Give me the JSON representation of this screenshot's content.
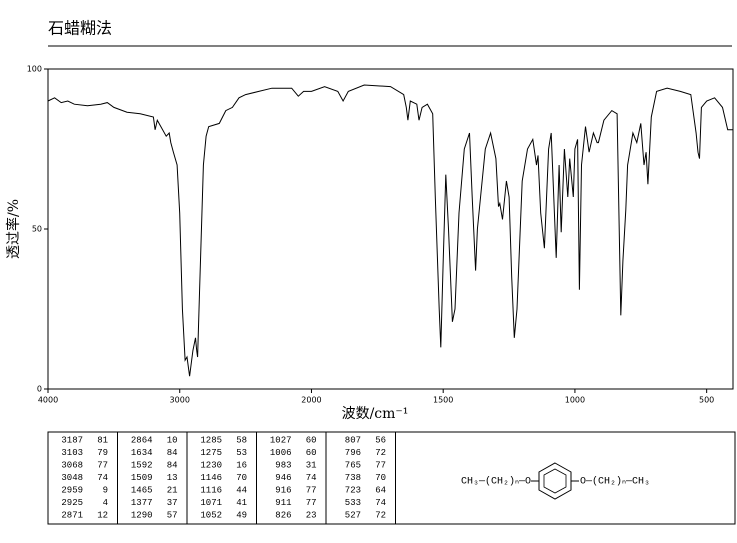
{
  "chart_data": {
    "type": "line",
    "title": "石蜡糊法",
    "xlabel": "波数/cm⁻¹",
    "ylabel": "透过率/%",
    "color": "#000000",
    "xlim": [
      4000,
      400
    ],
    "x_scale_break": 2000,
    "x_scale_ratio": 2,
    "xticks": [
      4000,
      3000,
      2000,
      1500,
      1000,
      500
    ],
    "ylim": [
      0,
      100
    ],
    "yticks": [
      0,
      50,
      100
    ],
    "grid": false,
    "x": [
      4000,
      3950,
      3900,
      3850,
      3800,
      3700,
      3600,
      3550,
      3500,
      3400,
      3300,
      3200,
      3187,
      3170,
      3103,
      3080,
      3068,
      3048,
      3020,
      3000,
      2980,
      2959,
      2945,
      2925,
      2900,
      2880,
      2871,
      2864,
      2850,
      2820,
      2800,
      2780,
      2700,
      2650,
      2600,
      2550,
      2500,
      2400,
      2300,
      2200,
      2150,
      2100,
      2060,
      2000,
      1950,
      1900,
      1880,
      1860,
      1800,
      1700,
      1650,
      1640,
      1634,
      1625,
      1600,
      1592,
      1580,
      1560,
      1540,
      1530,
      1515,
      1509,
      1500,
      1490,
      1480,
      1465,
      1455,
      1440,
      1420,
      1400,
      1390,
      1377,
      1370,
      1340,
      1320,
      1300,
      1290,
      1285,
      1275,
      1260,
      1250,
      1240,
      1230,
      1220,
      1200,
      1180,
      1160,
      1146,
      1140,
      1130,
      1116,
      1100,
      1090,
      1071,
      1060,
      1052,
      1040,
      1027,
      1020,
      1006,
      1000,
      990,
      983,
      975,
      960,
      946,
      930,
      916,
      911,
      890,
      860,
      840,
      826,
      818,
      807,
      800,
      796,
      780,
      765,
      750,
      738,
      730,
      723,
      710,
      690,
      650,
      600,
      560,
      540,
      533,
      527,
      520,
      500,
      470,
      440,
      420,
      400
    ],
    "values": [
      90,
      91,
      89.5,
      90,
      89,
      88.5,
      89,
      89.5,
      88,
      86.5,
      86,
      85,
      81,
      84,
      79,
      80,
      77,
      74,
      70,
      55,
      25,
      9,
      10,
      4,
      12,
      16,
      12,
      10,
      30,
      70,
      79,
      82,
      83,
      87,
      88,
      91,
      92,
      93,
      94,
      94,
      94,
      91.5,
      93,
      93,
      94.5,
      93,
      90,
      93,
      95,
      94.5,
      92,
      88,
      84,
      90,
      89,
      84,
      88,
      89,
      86,
      60,
      25,
      13,
      40,
      67,
      50,
      21,
      25,
      55,
      75,
      80,
      60,
      37,
      50,
      75,
      80,
      72,
      57,
      58,
      53,
      65,
      60,
      35,
      16,
      25,
      65,
      75,
      78,
      70,
      73,
      55,
      44,
      75,
      80,
      41,
      70,
      49,
      75,
      60,
      72,
      60,
      75,
      78,
      31,
      70,
      82,
      74,
      80,
      77,
      77,
      84,
      87,
      86,
      23,
      40,
      56,
      70,
      72,
      80,
      77,
      83,
      70,
      74,
      64,
      85,
      93,
      94,
      93,
      92,
      80,
      74,
      72,
      88,
      90,
      91,
      88,
      81,
      81
    ]
  },
  "peak_table": {
    "columns": [
      [
        [
          3187,
          81
        ],
        [
          3103,
          79
        ],
        [
          3068,
          77
        ],
        [
          3048,
          74
        ],
        [
          2959,
          9
        ],
        [
          2925,
          4
        ],
        [
          2871,
          12
        ]
      ],
      [
        [
          2864,
          10
        ],
        [
          1634,
          84
        ],
        [
          1592,
          84
        ],
        [
          1509,
          13
        ],
        [
          1465,
          21
        ],
        [
          1377,
          37
        ],
        [
          1290,
          57
        ]
      ],
      [
        [
          1285,
          58
        ],
        [
          1275,
          53
        ],
        [
          1230,
          16
        ],
        [
          1146,
          70
        ],
        [
          1116,
          44
        ],
        [
          1071,
          41
        ],
        [
          1052,
          49
        ]
      ],
      [
        [
          1027,
          60
        ],
        [
          1006,
          60
        ],
        [
          983,
          31
        ],
        [
          946,
          74
        ],
        [
          916,
          77
        ],
        [
          911,
          77
        ],
        [
          826,
          23
        ]
      ],
      [
        [
          807,
          56
        ],
        [
          796,
          72
        ],
        [
          765,
          77
        ],
        [
          738,
          70
        ],
        [
          723,
          64
        ],
        [
          533,
          74
        ],
        [
          527,
          72
        ]
      ]
    ]
  },
  "structure": {
    "left": "CH₃—(CH₂)ₙ—O",
    "right": "O—(CH₂)ₙ—CH₃"
  }
}
